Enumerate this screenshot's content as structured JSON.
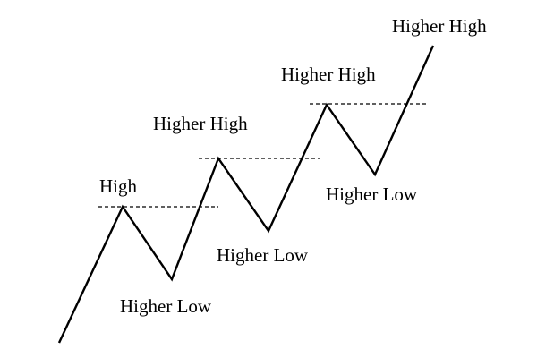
{
  "diagram": {
    "labels": {
      "high": "High",
      "higher_high_1": "Higher High",
      "higher_high_2": "Higher High",
      "higher_high_3": "Higher High",
      "higher_low_1": "Higher Low",
      "higher_low_2": "Higher Low",
      "higher_low_3": "Higher Low"
    },
    "colors": {
      "line": "#000000",
      "text": "#000000",
      "background": "#ffffff"
    }
  }
}
